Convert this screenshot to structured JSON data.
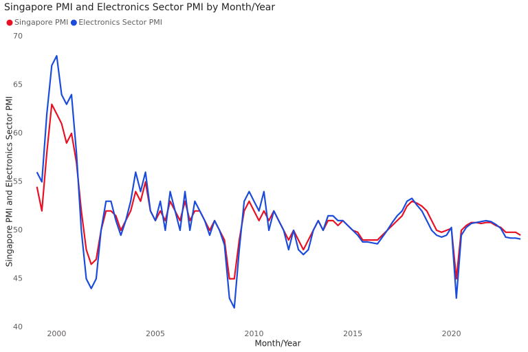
{
  "chart_data": {
    "type": "line",
    "title": "Singapore PMI and Electronics Sector PMI by Month/Year",
    "x_label": "Month/Year",
    "y_label": "Singapore PMI and Electronics Sector PMI",
    "xlim": [
      1998.8,
      2023.6
    ],
    "xticks": [
      2000,
      2005,
      2010,
      2015,
      2020
    ],
    "ylim": [
      40,
      70
    ],
    "yticks": [
      40,
      45,
      50,
      55,
      60,
      65,
      70
    ],
    "grid": false,
    "legend": "top-left",
    "x": [
      1999.0,
      1999.25,
      1999.5,
      1999.75,
      2000.0,
      2000.25,
      2000.5,
      2000.75,
      2001.0,
      2001.25,
      2001.5,
      2001.75,
      2002.0,
      2002.25,
      2002.5,
      2002.75,
      2003.0,
      2003.25,
      2003.5,
      2003.75,
      2004.0,
      2004.25,
      2004.5,
      2004.75,
      2005.0,
      2005.25,
      2005.5,
      2005.75,
      2006.0,
      2006.25,
      2006.5,
      2006.75,
      2007.0,
      2007.25,
      2007.5,
      2007.75,
      2008.0,
      2008.25,
      2008.5,
      2008.75,
      2009.0,
      2009.25,
      2009.5,
      2009.75,
      2010.0,
      2010.25,
      2010.5,
      2010.75,
      2011.0,
      2011.25,
      2011.5,
      2011.75,
      2012.0,
      2012.25,
      2012.5,
      2012.75,
      2013.0,
      2013.25,
      2013.5,
      2013.75,
      2014.0,
      2014.25,
      2014.5,
      2014.75,
      2015.0,
      2015.25,
      2015.5,
      2015.75,
      2016.0,
      2016.25,
      2016.5,
      2016.75,
      2017.0,
      2017.25,
      2017.5,
      2017.75,
      2018.0,
      2018.25,
      2018.5,
      2018.75,
      2019.0,
      2019.25,
      2019.5,
      2019.75,
      2020.0,
      2020.25,
      2020.5,
      2020.75,
      2021.0,
      2021.25,
      2021.5,
      2021.75,
      2022.0,
      2022.25,
      2022.5,
      2022.75,
      2023.0,
      2023.25,
      2023.5
    ],
    "series": [
      {
        "name": "Singapore PMI",
        "color": "#e81123",
        "values": [
          54.5,
          52,
          58,
          63,
          62,
          61,
          59,
          60,
          57,
          52,
          48,
          46.5,
          47,
          50,
          52,
          52,
          51.5,
          50,
          51,
          52,
          54,
          53,
          55,
          52,
          51,
          52,
          51,
          53,
          52,
          51,
          53,
          51,
          52,
          52,
          51,
          50,
          51,
          50,
          49,
          45,
          45,
          49,
          52,
          53,
          52,
          51,
          52,
          51,
          52,
          51,
          50,
          49,
          50,
          49,
          48,
          49,
          50,
          51,
          50,
          51,
          51,
          50.5,
          51,
          50.5,
          50,
          49.8,
          49,
          49,
          49,
          49,
          49.5,
          50,
          50.5,
          51,
          51.5,
          52.5,
          53,
          52.8,
          52.5,
          52,
          51,
          50,
          49.8,
          50,
          50.2,
          45,
          50,
          50.5,
          50.8,
          50.8,
          50.7,
          50.8,
          50.8,
          50.5,
          50.3,
          49.8,
          49.8,
          49.8,
          49.5
        ]
      },
      {
        "name": "Electronics Sector PMI",
        "color": "#1a4bdb",
        "values": [
          56,
          55,
          62,
          67,
          68,
          64,
          63,
          64,
          58,
          50,
          45,
          44,
          45,
          50,
          53,
          53,
          51,
          49.5,
          51,
          53,
          56,
          54,
          56,
          52,
          51,
          53,
          50,
          54,
          52,
          50,
          54,
          50,
          53,
          52,
          51,
          49.5,
          51,
          50,
          48.5,
          43,
          42,
          48,
          53,
          54,
          53,
          52,
          54,
          50,
          52,
          51,
          50,
          48,
          50,
          48,
          47.5,
          48,
          50,
          51,
          50,
          51.5,
          51.5,
          51,
          51,
          50.5,
          50,
          49.5,
          48.8,
          48.8,
          48.7,
          48.6,
          49.3,
          50,
          50.8,
          51.5,
          52,
          53,
          53.3,
          52.6,
          52,
          51,
          50,
          49.5,
          49.3,
          49.5,
          50.3,
          43,
          49.5,
          50.3,
          50.7,
          50.8,
          50.9,
          51,
          50.9,
          50.6,
          50.2,
          49.3,
          49.2,
          49.2,
          49.1
        ]
      }
    ]
  }
}
